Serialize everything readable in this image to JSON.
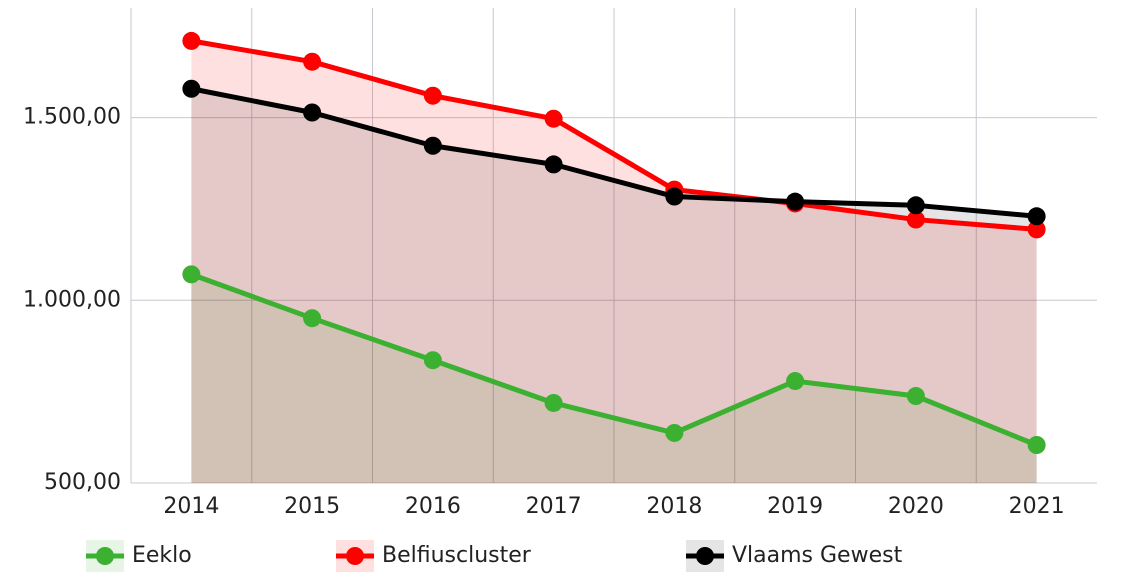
{
  "chart_data": {
    "type": "line",
    "categories": [
      "2014",
      "2015",
      "2016",
      "2017",
      "2018",
      "2019",
      "2020",
      "2021"
    ],
    "series": [
      {
        "name": "Eeklo",
        "color": "#3cb030",
        "values": [
          1071,
          951,
          836,
          719,
          637,
          779,
          738,
          604
        ]
      },
      {
        "name": "Belfiuscluster",
        "color": "#ff0000",
        "values": [
          1710,
          1653,
          1560,
          1497,
          1303,
          1265,
          1221,
          1194
        ]
      },
      {
        "name": "Vlaams Gewest",
        "color": "#000000",
        "values": [
          1579,
          1514,
          1423,
          1372,
          1284,
          1270,
          1260,
          1230
        ]
      }
    ],
    "ylim": [
      500,
      1800
    ],
    "yticks": [
      {
        "value": 500,
        "label": "500,00"
      },
      {
        "value": 1000,
        "label": "1.000,00"
      },
      {
        "value": 1500,
        "label": "1.500,00"
      }
    ],
    "grid": true,
    "area": true,
    "legend": "bottom"
  }
}
